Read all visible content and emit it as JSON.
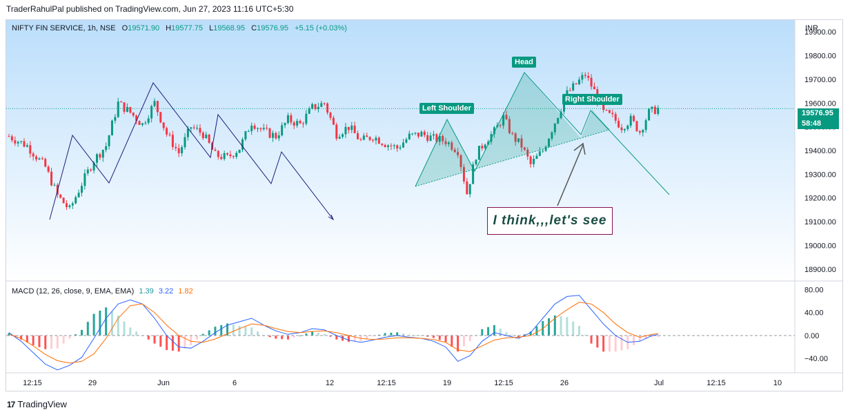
{
  "publisher": "TraderRahulPal published on TradingView.com, Jun 27, 2023 11:16 UTC+5:30",
  "brand": {
    "footer": "TradingView"
  },
  "legend": {
    "symbol": "NIFTY FIN SERVICE, 1h, NSE",
    "open_label": "O",
    "open": "19571.90",
    "high_label": "H",
    "high": "19577.75",
    "low_label": "L",
    "low": "19568.95",
    "close_label": "C",
    "close": "19576.95",
    "change": "+5.15 (+0.03%)"
  },
  "macd_legend": {
    "title": "MACD (12, 26, close, 9, EMA, EMA)",
    "v1": "1.39",
    "v2": "3.22",
    "v3": "1.82"
  },
  "price_axis": {
    "currency": "INR"
  },
  "price_tag": {
    "price": "19576.95",
    "countdown": "58:48"
  },
  "annotations": {
    "head": "Head",
    "left_shoulder": "Left Shoulder",
    "right_shoulder": "Right Shoulder",
    "note": "I think,,,let's see"
  },
  "colors": {
    "up": "#089981",
    "down": "#f23645",
    "macd": "#2962ff",
    "signal": "#ff6d00",
    "drawing": "#1e1b7a",
    "pattern": "#089981",
    "bg_top": "#bbdefb"
  },
  "chart_data": [
    {
      "type": "candlestick",
      "ylim": [
        18850,
        19950
      ],
      "yticks": [
        19900,
        19800,
        19700,
        19600,
        19500,
        19400,
        19300,
        19200,
        19100,
        19000,
        18900
      ],
      "x_tick_labels": [
        "12:15",
        "29",
        "Jun",
        "6",
        "12",
        "12:15",
        "19",
        "12:15",
        "26",
        "Jul",
        "12:15",
        "10"
      ],
      "last_price": 19576.95,
      "close_path": [
        [
          0,
          19460
        ],
        [
          6,
          19420
        ],
        [
          12,
          19330
        ],
        [
          16,
          19210
        ],
        [
          20,
          19150
        ],
        [
          24,
          19260
        ],
        [
          28,
          19360
        ],
        [
          32,
          19420
        ],
        [
          36,
          19600
        ],
        [
          40,
          19560
        ],
        [
          44,
          19510
        ],
        [
          48,
          19600
        ],
        [
          52,
          19470
        ],
        [
          56,
          19390
        ],
        [
          60,
          19500
        ],
        [
          64,
          19470
        ],
        [
          68,
          19380
        ],
        [
          72,
          19370
        ],
        [
          76,
          19410
        ],
        [
          80,
          19520
        ],
        [
          84,
          19480
        ],
        [
          88,
          19460
        ],
        [
          92,
          19530
        ],
        [
          96,
          19510
        ],
        [
          100,
          19580
        ],
        [
          104,
          19600
        ],
        [
          108,
          19470
        ],
        [
          112,
          19500
        ],
        [
          116,
          19440
        ],
        [
          120,
          19460
        ],
        [
          124,
          19430
        ],
        [
          128,
          19410
        ],
        [
          132,
          19460
        ],
        [
          136,
          19470
        ],
        [
          140,
          19450
        ],
        [
          144,
          19440
        ],
        [
          148,
          19400
        ],
        [
          151,
          19220
        ],
        [
          154,
          19380
        ],
        [
          157,
          19440
        ],
        [
          160,
          19480
        ],
        [
          163,
          19540
        ],
        [
          166,
          19460
        ],
        [
          169,
          19420
        ],
        [
          172,
          19340
        ],
        [
          176,
          19400
        ],
        [
          180,
          19520
        ],
        [
          184,
          19640
        ],
        [
          187,
          19680
        ],
        [
          190,
          19720
        ],
        [
          193,
          19650
        ],
        [
          196,
          19560
        ],
        [
          199,
          19540
        ],
        [
          202,
          19500
        ],
        [
          205,
          19530
        ],
        [
          208,
          19480
        ],
        [
          211,
          19560
        ],
        [
          214,
          19577
        ]
      ],
      "range_n": 260
    },
    {
      "type": "line",
      "title": "MACD (12, 26, close, 9, EMA, EMA)",
      "ylim": [
        -65,
        95
      ],
      "yticks": [
        80,
        40,
        0,
        -40
      ],
      "series": [
        {
          "name": "MACD",
          "values": [
            [
              0,
              5
            ],
            [
              4,
              -10
            ],
            [
              8,
              -30
            ],
            [
              12,
              -50
            ],
            [
              16,
              -60
            ],
            [
              20,
              -52
            ],
            [
              24,
              -38
            ],
            [
              28,
              -5
            ],
            [
              32,
              30
            ],
            [
              36,
              55
            ],
            [
              40,
              62
            ],
            [
              44,
              55
            ],
            [
              48,
              30
            ],
            [
              52,
              0
            ],
            [
              56,
              -20
            ],
            [
              60,
              -22
            ],
            [
              64,
              -10
            ],
            [
              68,
              5
            ],
            [
              72,
              18
            ],
            [
              76,
              24
            ],
            [
              80,
              30
            ],
            [
              84,
              18
            ],
            [
              88,
              8
            ],
            [
              92,
              2
            ],
            [
              96,
              5
            ],
            [
              100,
              12
            ],
            [
              104,
              10
            ],
            [
              108,
              0
            ],
            [
              112,
              -8
            ],
            [
              116,
              -12
            ],
            [
              120,
              -8
            ],
            [
              124,
              -3
            ],
            [
              128,
              0
            ],
            [
              132,
              -3
            ],
            [
              136,
              -5
            ],
            [
              140,
              -10
            ],
            [
              144,
              -20
            ],
            [
              148,
              -45
            ],
            [
              152,
              -35
            ],
            [
              156,
              -10
            ],
            [
              160,
              5
            ],
            [
              164,
              0
            ],
            [
              168,
              -5
            ],
            [
              172,
              5
            ],
            [
              176,
              30
            ],
            [
              180,
              55
            ],
            [
              184,
              68
            ],
            [
              188,
              70
            ],
            [
              192,
              45
            ],
            [
              196,
              20
            ],
            [
              200,
              0
            ],
            [
              204,
              -12
            ],
            [
              208,
              -10
            ],
            [
              212,
              0
            ],
            [
              214,
              1.39
            ]
          ]
        },
        {
          "name": "Signal",
          "values": [
            [
              0,
              2
            ],
            [
              4,
              -5
            ],
            [
              8,
              -18
            ],
            [
              12,
              -33
            ],
            [
              16,
              -44
            ],
            [
              20,
              -48
            ],
            [
              24,
              -45
            ],
            [
              28,
              -32
            ],
            [
              32,
              -5
            ],
            [
              36,
              30
            ],
            [
              40,
              52
            ],
            [
              44,
              55
            ],
            [
              48,
              40
            ],
            [
              52,
              18
            ],
            [
              56,
              0
            ],
            [
              60,
              -10
            ],
            [
              64,
              -12
            ],
            [
              68,
              -6
            ],
            [
              72,
              3
            ],
            [
              76,
              12
            ],
            [
              80,
              20
            ],
            [
              84,
              18
            ],
            [
              88,
              12
            ],
            [
              92,
              7
            ],
            [
              96,
              5
            ],
            [
              100,
              7
            ],
            [
              104,
              8
            ],
            [
              108,
              5
            ],
            [
              112,
              0
            ],
            [
              116,
              -5
            ],
            [
              120,
              -7
            ],
            [
              124,
              -6
            ],
            [
              128,
              -4
            ],
            [
              132,
              -4
            ],
            [
              136,
              -5
            ],
            [
              140,
              -7
            ],
            [
              144,
              -12
            ],
            [
              148,
              -25
            ],
            [
              152,
              -28
            ],
            [
              156,
              -18
            ],
            [
              160,
              -8
            ],
            [
              164,
              -4
            ],
            [
              168,
              -3
            ],
            [
              172,
              0
            ],
            [
              176,
              12
            ],
            [
              180,
              30
            ],
            [
              184,
              45
            ],
            [
              188,
              58
            ],
            [
              192,
              55
            ],
            [
              196,
              40
            ],
            [
              200,
              20
            ],
            [
              204,
              5
            ],
            [
              208,
              -3
            ],
            [
              212,
              2
            ],
            [
              214,
              3.22
            ]
          ]
        }
      ],
      "histogram": "sign(MACD - Signal)",
      "range_n": 260
    }
  ]
}
